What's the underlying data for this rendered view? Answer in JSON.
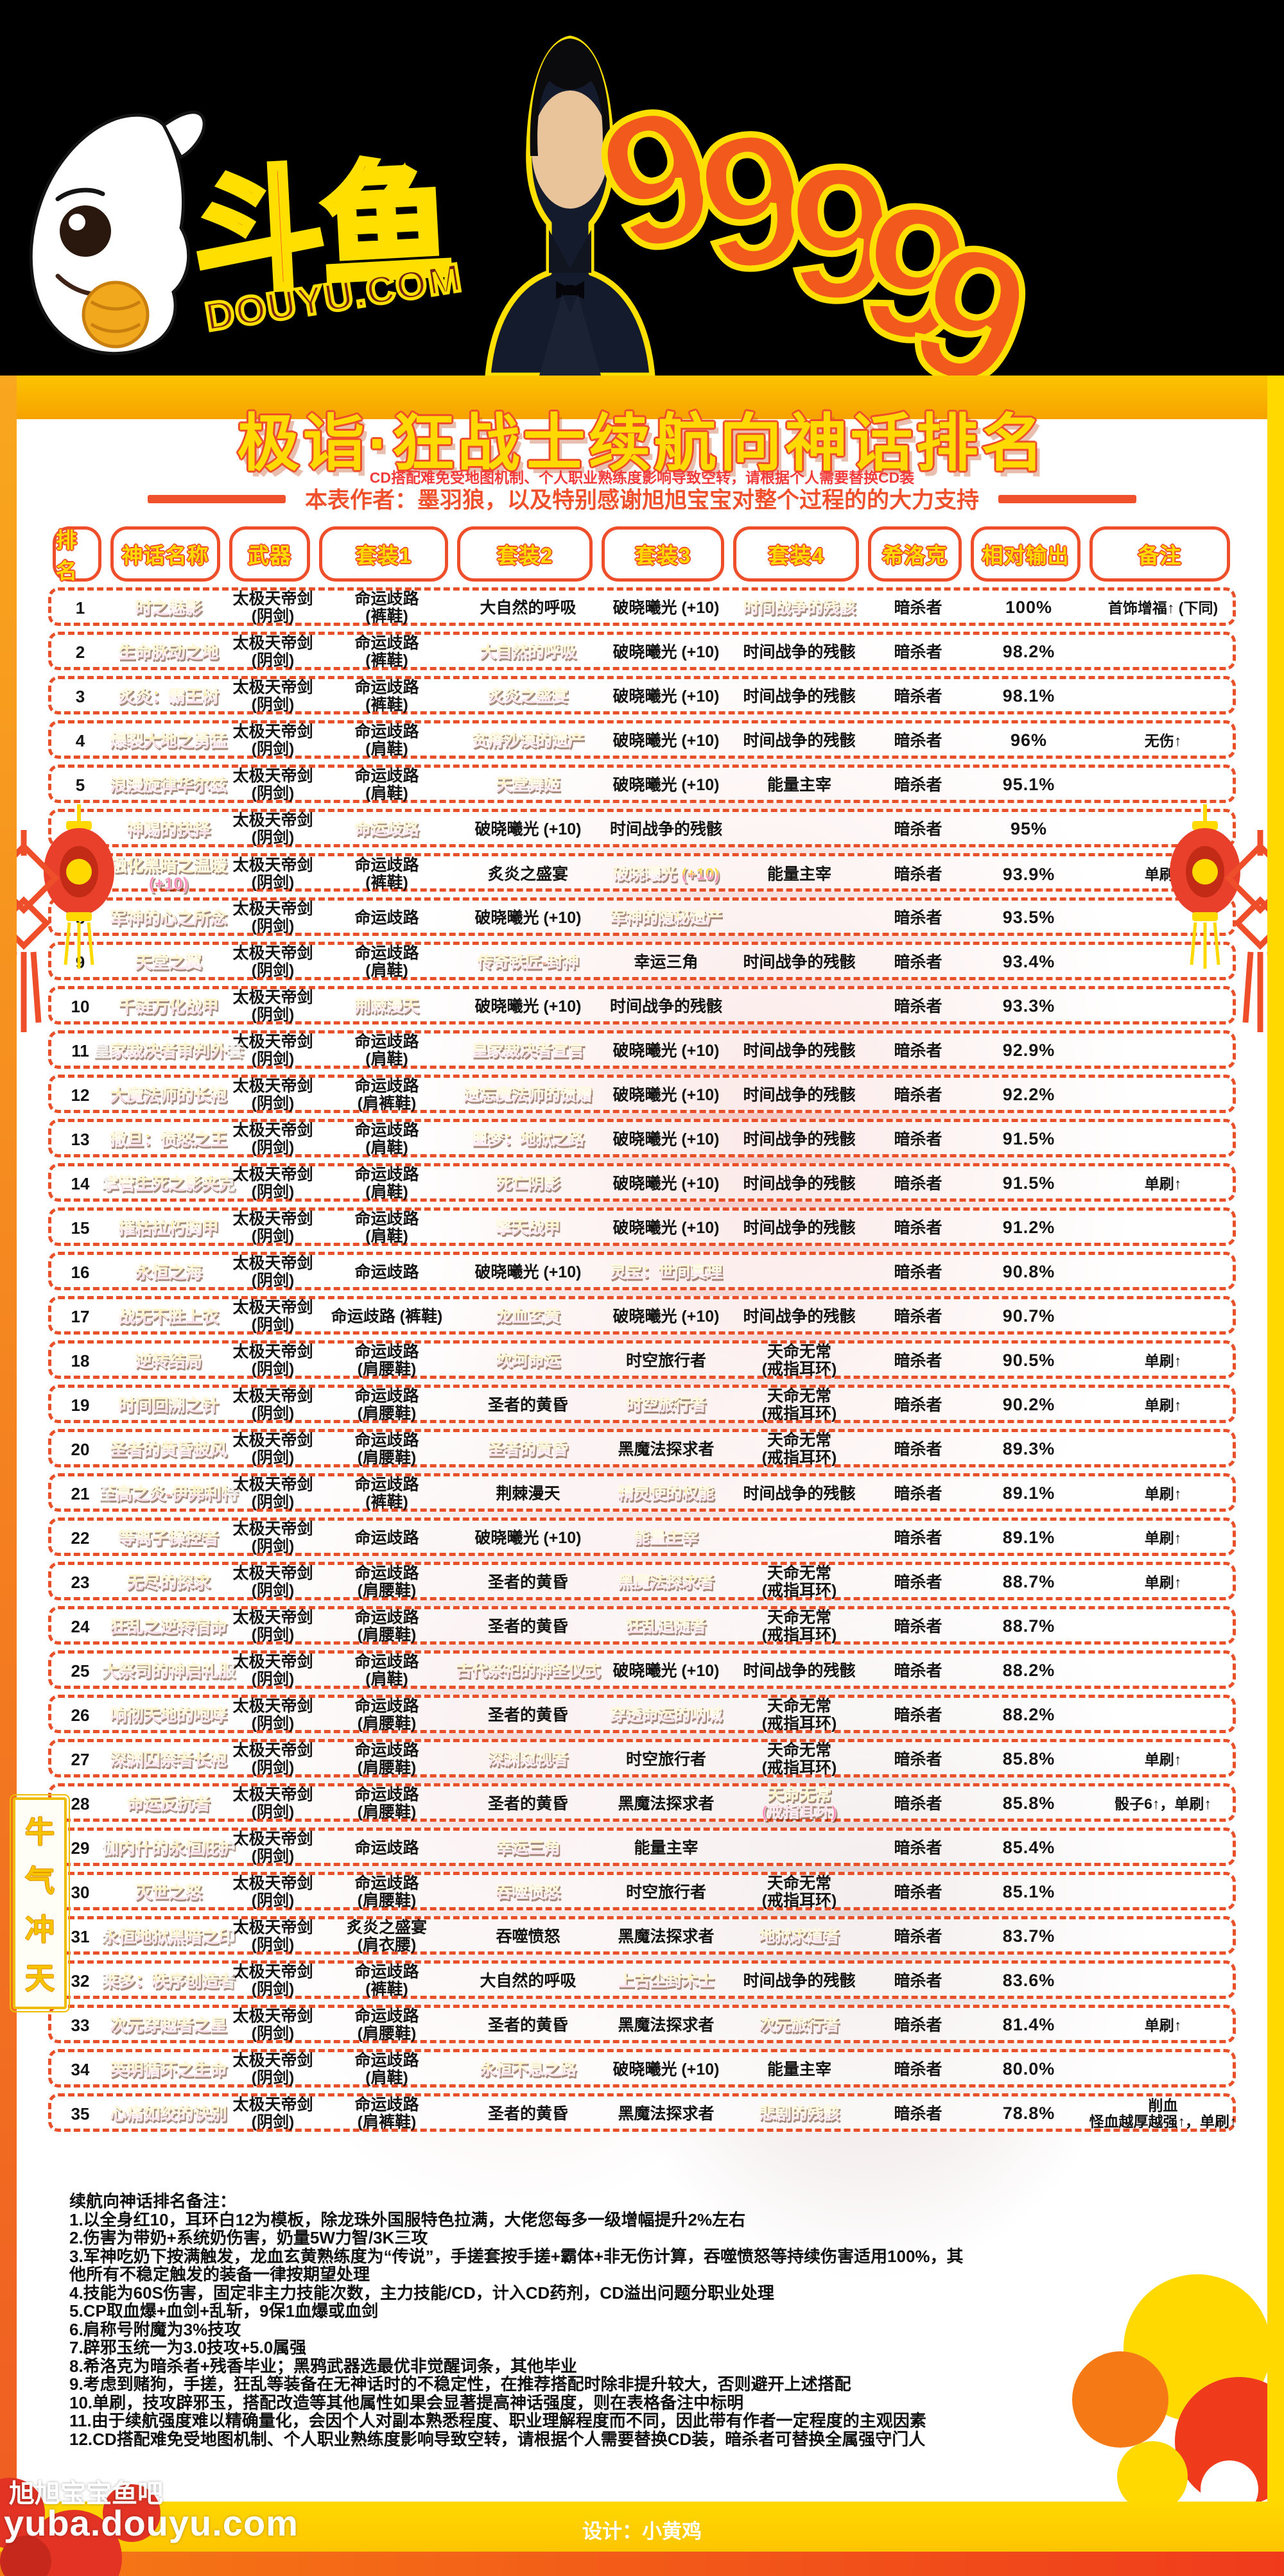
{
  "banner": {
    "logo_cn": "斗鱼",
    "logo_url": "DOUYU.COM",
    "number": "99999"
  },
  "header": {
    "title": "极诣·狂战士续航向神话排名",
    "subtitle": "CD搭配难免受地图机制、个人职业熟练度影响导致空转，请根据个人需要替换CD装",
    "author": "本表作者：墨羽狼，以及特别感谢旭旭宝宝对整个过程的的大力支持"
  },
  "chart_data": {
    "type": "table",
    "title": "极诣·狂战士续航向神话排名",
    "columns": [
      "排名",
      "神话名称",
      "武器",
      "套装1",
      "套装2",
      "套装3",
      "套装4",
      "希洛克",
      "相对输出",
      "备注"
    ],
    "weapon_all": "太极天帝剑\n(阴剑)",
    "rows": [
      {
        "r": "1",
        "n": "时之魅影",
        "s": [
          [
            "命运歧路\n(裤鞋)",
            0
          ],
          [
            "大自然的呼吸",
            0
          ],
          [
            "破晓曦光 (+10)",
            0
          ],
          [
            "时间战争的残骸",
            1
          ]
        ],
        "k": "暗杀者",
        "o": "100%",
        "b": "首饰增福↑ (下同)"
      },
      {
        "r": "2",
        "n": "生命脉动之地",
        "s": [
          [
            "命运歧路\n(裤鞋)",
            0
          ],
          [
            "大自然的呼吸",
            1
          ],
          [
            "破晓曦光 (+10)",
            0
          ],
          [
            "时间战争的残骸",
            0
          ]
        ],
        "k": "暗杀者",
        "o": "98.2%",
        "b": ""
      },
      {
        "r": "3",
        "n": "炙炎：霸王树",
        "s": [
          [
            "命运歧路\n(裤鞋)",
            0
          ],
          [
            "炙炎之盛宴",
            1
          ],
          [
            "破晓曦光 (+10)",
            0
          ],
          [
            "时间战争的残骸",
            0
          ]
        ],
        "k": "暗杀者",
        "o": "98.1%",
        "b": ""
      },
      {
        "r": "4",
        "n": "爆裂大地之勇猛",
        "s": [
          [
            "命运歧路\n(肩鞋)",
            0
          ],
          [
            "贫瘠沙漠的遗产",
            1
          ],
          [
            "破晓曦光 (+10)",
            0
          ],
          [
            "时间战争的残骸",
            0
          ]
        ],
        "k": "暗杀者",
        "o": "96%",
        "b": "无伤↑"
      },
      {
        "r": "5",
        "n": "浪漫旋律华尔兹",
        "s": [
          [
            "命运歧路\n(肩鞋)",
            0
          ],
          [
            "天堂舞姬",
            1
          ],
          [
            "破晓曦光 (+10)",
            0
          ],
          [
            "能量主宰",
            0
          ]
        ],
        "k": "暗杀者",
        "o": "95.1%",
        "b": ""
      },
      {
        "r": "6",
        "n": "神赐的抉择",
        "s": [
          [
            "命运歧路",
            1
          ],
          [
            "破晓曦光 (+10)",
            0
          ],
          [
            "时间战争的残骸",
            0
          ],
          [
            "",
            0
          ]
        ],
        "k": "暗杀者",
        "o": "95%",
        "b": ""
      },
      {
        "r": "7",
        "n": "融化黑暗之温暖\n(+10)",
        "s": [
          [
            "命运歧路\n(裤鞋)",
            0
          ],
          [
            "炙炎之盛宴",
            0
          ],
          [
            "破晓曦光 (+10)",
            1
          ],
          [
            "能量主宰",
            0
          ]
        ],
        "k": "暗杀者",
        "o": "93.9%",
        "b": "单刷↑"
      },
      {
        "r": "8",
        "n": "军神的心之所念",
        "s": [
          [
            "命运歧路",
            0
          ],
          [
            "破晓曦光 (+10)",
            0
          ],
          [
            "军神的隐秘遗产",
            1
          ],
          [
            "",
            0
          ]
        ],
        "k": "暗杀者",
        "o": "93.5%",
        "b": ""
      },
      {
        "r": "9",
        "n": "天堂之翼",
        "s": [
          [
            "命运歧路\n(肩鞋)",
            0
          ],
          [
            "传奇铁匠-封神",
            1
          ],
          [
            "幸运三角",
            0
          ],
          [
            "时间战争的残骸",
            0
          ]
        ],
        "k": "暗杀者",
        "o": "93.4%",
        "b": ""
      },
      {
        "r": "10",
        "n": "千链万化战甲",
        "s": [
          [
            "荆棘漫天",
            1
          ],
          [
            "破晓曦光 (+10)",
            0
          ],
          [
            "时间战争的残骸",
            0
          ],
          [
            "",
            0
          ]
        ],
        "k": "暗杀者",
        "o": "93.3%",
        "b": ""
      },
      {
        "r": "11",
        "n": "皇家裁决者审判外套",
        "s": [
          [
            "命运歧路\n(肩鞋)",
            0
          ],
          [
            "皇家裁决者宣言",
            1
          ],
          [
            "破晓曦光 (+10)",
            0
          ],
          [
            "时间战争的残骸",
            0
          ]
        ],
        "k": "暗杀者",
        "o": "92.9%",
        "b": ""
      },
      {
        "r": "12",
        "n": "大魔法师的长袍",
        "s": [
          [
            "命运歧路\n(肩裤鞋)",
            0
          ],
          [
            "遗忘魔法师的馈赠",
            1
          ],
          [
            "破晓曦光 (+10)",
            0
          ],
          [
            "时间战争的残骸",
            0
          ]
        ],
        "k": "暗杀者",
        "o": "92.2%",
        "b": ""
      },
      {
        "r": "13",
        "n": "撒旦：愤怒之王",
        "s": [
          [
            "命运歧路\n(肩鞋)",
            0
          ],
          [
            "噩梦：地狱之路",
            1
          ],
          [
            "破晓曦光 (+10)",
            0
          ],
          [
            "时间战争的残骸",
            0
          ]
        ],
        "k": "暗杀者",
        "o": "91.5%",
        "b": ""
      },
      {
        "r": "14",
        "n": "掌管生死之影夹克",
        "s": [
          [
            "命运歧路\n(肩鞋)",
            0
          ],
          [
            "死亡阴影",
            1
          ],
          [
            "破晓曦光 (+10)",
            0
          ],
          [
            "时间战争的残骸",
            0
          ]
        ],
        "k": "暗杀者",
        "o": "91.5%",
        "b": "单刷↑"
      },
      {
        "r": "15",
        "n": "摧枯拉朽胸甲",
        "s": [
          [
            "命运歧路\n(肩鞋)",
            0
          ],
          [
            "擎天战甲",
            1
          ],
          [
            "破晓曦光 (+10)",
            0
          ],
          [
            "时间战争的残骸",
            0
          ]
        ],
        "k": "暗杀者",
        "o": "91.2%",
        "b": ""
      },
      {
        "r": "16",
        "n": "永恒之海",
        "s": [
          [
            "命运歧路",
            0
          ],
          [
            "破晓曦光 (+10)",
            0
          ],
          [
            "灵宝：世间真理",
            1
          ],
          [
            "",
            0
          ]
        ],
        "k": "暗杀者",
        "o": "90.8%",
        "b": ""
      },
      {
        "r": "17",
        "n": "战无不胜上衣",
        "s": [
          [
            "命运歧路 (裤鞋)",
            0
          ],
          [
            "龙血玄黄",
            1
          ],
          [
            "破晓曦光 (+10)",
            0
          ],
          [
            "时间战争的残骸",
            0
          ]
        ],
        "k": "暗杀者",
        "o": "90.7%",
        "b": ""
      },
      {
        "r": "18",
        "n": "逆转结局",
        "s": [
          [
            "命运歧路\n(肩腰鞋)",
            0
          ],
          [
            "坎坷命运",
            1
          ],
          [
            "时空旅行者",
            0
          ],
          [
            "天命无常\n(戒指耳环)",
            0
          ]
        ],
        "k": "暗杀者",
        "o": "90.5%",
        "b": "单刷↑"
      },
      {
        "r": "19",
        "n": "时间回溯之针",
        "s": [
          [
            "命运歧路\n(肩腰鞋)",
            0
          ],
          [
            "圣者的黄昏",
            0
          ],
          [
            "时空旅行者",
            1
          ],
          [
            "天命无常\n(戒指耳环)",
            0
          ]
        ],
        "k": "暗杀者",
        "o": "90.2%",
        "b": "单刷↑"
      },
      {
        "r": "20",
        "n": "圣者的黄昏披风",
        "s": [
          [
            "命运歧路\n(肩腰鞋)",
            0
          ],
          [
            "圣者的黄昏",
            1
          ],
          [
            "黑魔法探求者",
            0
          ],
          [
            "天命无常\n(戒指耳环)",
            0
          ]
        ],
        "k": "暗杀者",
        "o": "89.3%",
        "b": ""
      },
      {
        "r": "21",
        "n": "至高之炎-伊弗利特",
        "s": [
          [
            "命运歧路\n(裤鞋)",
            0
          ],
          [
            "荆棘漫天",
            0
          ],
          [
            "精灵使的权能",
            1
          ],
          [
            "时间战争的残骸",
            0
          ]
        ],
        "k": "暗杀者",
        "o": "89.1%",
        "b": "单刷↑"
      },
      {
        "r": "22",
        "n": "等离子操控者",
        "s": [
          [
            "命运歧路",
            0
          ],
          [
            "破晓曦光 (+10)",
            0
          ],
          [
            "能量主宰",
            1
          ],
          [
            "",
            0
          ]
        ],
        "k": "暗杀者",
        "o": "89.1%",
        "b": "单刷↑"
      },
      {
        "r": "23",
        "n": "无尽的探求",
        "s": [
          [
            "命运歧路\n(肩腰鞋)",
            0
          ],
          [
            "圣者的黄昏",
            0
          ],
          [
            "黑魔法探求者",
            1
          ],
          [
            "天命无常\n(戒指耳环)",
            0
          ]
        ],
        "k": "暗杀者",
        "o": "88.7%",
        "b": "单刷↑"
      },
      {
        "r": "24",
        "n": "狂乱之逆转宿命",
        "s": [
          [
            "命运歧路\n(肩腰鞋)",
            0
          ],
          [
            "圣者的黄昏",
            0
          ],
          [
            "狂乱追随者",
            1
          ],
          [
            "天命无常\n(戒指耳环)",
            0
          ]
        ],
        "k": "暗杀者",
        "o": "88.7%",
        "b": ""
      },
      {
        "r": "25",
        "n": "大祭司的神启礼服",
        "s": [
          [
            "命运歧路\n(肩鞋)",
            0
          ],
          [
            "古代祭祀的神圣仪式",
            1
          ],
          [
            "破晓曦光 (+10)",
            0
          ],
          [
            "时间战争的残骸",
            0
          ]
        ],
        "k": "暗杀者",
        "o": "88.2%",
        "b": ""
      },
      {
        "r": "26",
        "n": "响彻天地的咆哮",
        "s": [
          [
            "命运歧路\n(肩腰鞋)",
            0
          ],
          [
            "圣者的黄昏",
            0
          ],
          [
            "穿透命运的呐喊",
            1
          ],
          [
            "天命无常\n(戒指耳环)",
            0
          ]
        ],
        "k": "暗杀者",
        "o": "88.2%",
        "b": ""
      },
      {
        "r": "27",
        "n": "深渊囚禁者长袍",
        "s": [
          [
            "命运歧路\n(肩腰鞋)",
            0
          ],
          [
            "深渊窥视者",
            1
          ],
          [
            "时空旅行者",
            0
          ],
          [
            "天命无常\n(戒指耳环)",
            0
          ]
        ],
        "k": "暗杀者",
        "o": "85.8%",
        "b": "单刷↑"
      },
      {
        "r": "28",
        "n": "命运反抗者",
        "s": [
          [
            "命运歧路\n(肩腰鞋)",
            0
          ],
          [
            "圣者的黄昏",
            0
          ],
          [
            "黑魔法探求者",
            0
          ],
          [
            "天命无常\n(戒指耳环)",
            1
          ]
        ],
        "k": "暗杀者",
        "o": "85.8%",
        "b": "骰子6↑，单刷↑"
      },
      {
        "r": "29",
        "n": "伽内什的永恒庇护",
        "s": [
          [
            "命运歧路",
            0
          ],
          [
            "幸运三角",
            1
          ],
          [
            "能量主宰",
            0
          ],
          [
            "",
            0
          ]
        ],
        "k": "暗杀者",
        "o": "85.4%",
        "b": ""
      },
      {
        "r": "30",
        "n": "灭世之怒",
        "s": [
          [
            "命运歧路\n(肩腰鞋)",
            0
          ],
          [
            "吞噬愤怒",
            1
          ],
          [
            "时空旅行者",
            0
          ],
          [
            "天命无常\n(戒指耳环)",
            0
          ]
        ],
        "k": "暗杀者",
        "o": "85.1%",
        "b": ""
      },
      {
        "r": "31",
        "n": "永恒地狱黑暗之印",
        "s": [
          [
            "炙炎之盛宴\n(肩衣腰)",
            0
          ],
          [
            "吞噬愤怒",
            0
          ],
          [
            "黑魔法探求者",
            0
          ],
          [
            "地狱求道者",
            1
          ]
        ],
        "k": "暗杀者",
        "o": "83.7%",
        "b": ""
      },
      {
        "r": "32",
        "n": "莱多：秩序创造者",
        "s": [
          [
            "命运歧路\n(裤鞋)",
            0
          ],
          [
            "大自然的呼吸",
            0
          ],
          [
            "上古尘封术士",
            1
          ],
          [
            "时间战争的残骸",
            0
          ]
        ],
        "k": "暗杀者",
        "o": "83.6%",
        "b": ""
      },
      {
        "r": "33",
        "n": "次元穿越者之星",
        "s": [
          [
            "命运歧路\n(肩腰鞋)",
            0
          ],
          [
            "圣者的黄昏",
            0
          ],
          [
            "黑魔法探求者",
            0
          ],
          [
            "次元旅行者",
            1
          ]
        ],
        "k": "暗杀者",
        "o": "81.4%",
        "b": "单刷↑"
      },
      {
        "r": "34",
        "n": "英明循环之生命",
        "s": [
          [
            "命运歧路\n(肩鞋)",
            0
          ],
          [
            "永恒不息之路",
            1
          ],
          [
            "破晓曦光 (+10)",
            0
          ],
          [
            "能量主宰",
            0
          ]
        ],
        "k": "暗杀者",
        "o": "80.0%",
        "b": ""
      },
      {
        "r": "35",
        "n": "心痛如绞的诀别",
        "s": [
          [
            "命运歧路\n(肩裤鞋)",
            0
          ],
          [
            "圣者的黄昏",
            0
          ],
          [
            "黑魔法探求者",
            0
          ],
          [
            "悲剧的残骸",
            1
          ]
        ],
        "k": "暗杀者",
        "o": "78.8%",
        "b": "削血\n怪血越厚越强↑，单刷↑"
      }
    ]
  },
  "notes": {
    "title": "续航向神话排名备注：",
    "lines": [
      "1.以全身红10，耳环白12为模板，除龙珠外国服特色拉满，大佬您每多一级增幅提升2%左右",
      "2.伤害为带奶+系统奶伤害，奶量5W力智/3K三攻",
      "3.军神吃奶下按满触发，龙血玄黄熟练度为“传说”，手搓套按手搓+霸体+非无伤计算，吞噬愤怒等持续伤害适用100%，其他所有不稳定触发的装备一律按期望处理",
      "4.技能为60S伤害，固定非主力技能次数，主力技能/CD，计入CD药剂，CD溢出问题分职业处理",
      "5.CP取血爆+血剑+乱斩，9保1血爆或血剑",
      "6.肩称号附魔为3%技攻",
      "7.辟邪玉统一为3.0技攻+5.0属强",
      "8.希洛克为暗杀者+残香毕业；黑鸦武器选最优非觉醒词条，其他毕业",
      "9.考虑到赌狗，手搓，狂乱等装备在无神话时的不稳定性，在推荐搭配时除非提升较大，否则避开上述搭配",
      "10.单刷，技攻辟邪玉，搭配改造等其他属性如果会显著提高神话强度，则在表格备注中标明",
      "11.由于续航强度难以精确量化，会因个人对副本熟悉程度、职业理解程度而不同，因此带有作者一定程度的主观因素",
      "12.CD搭配难免受地图机制、个人职业熟练度影响导致空转，请根据个人需要替换CD装，暗杀者可替换全属强守门人"
    ]
  },
  "stamp": {
    "text": "牛气冲天"
  },
  "footer": {
    "fanclub": "旭旭宝宝鱼吧",
    "url": "yuba.douyu.com",
    "designer": "设计：小黄鸡"
  },
  "colors": {
    "accent": "#ee4e2a",
    "gold": "#ffd900",
    "douyu_orange": "#f34a21",
    "note_red": "#f23b3b"
  }
}
